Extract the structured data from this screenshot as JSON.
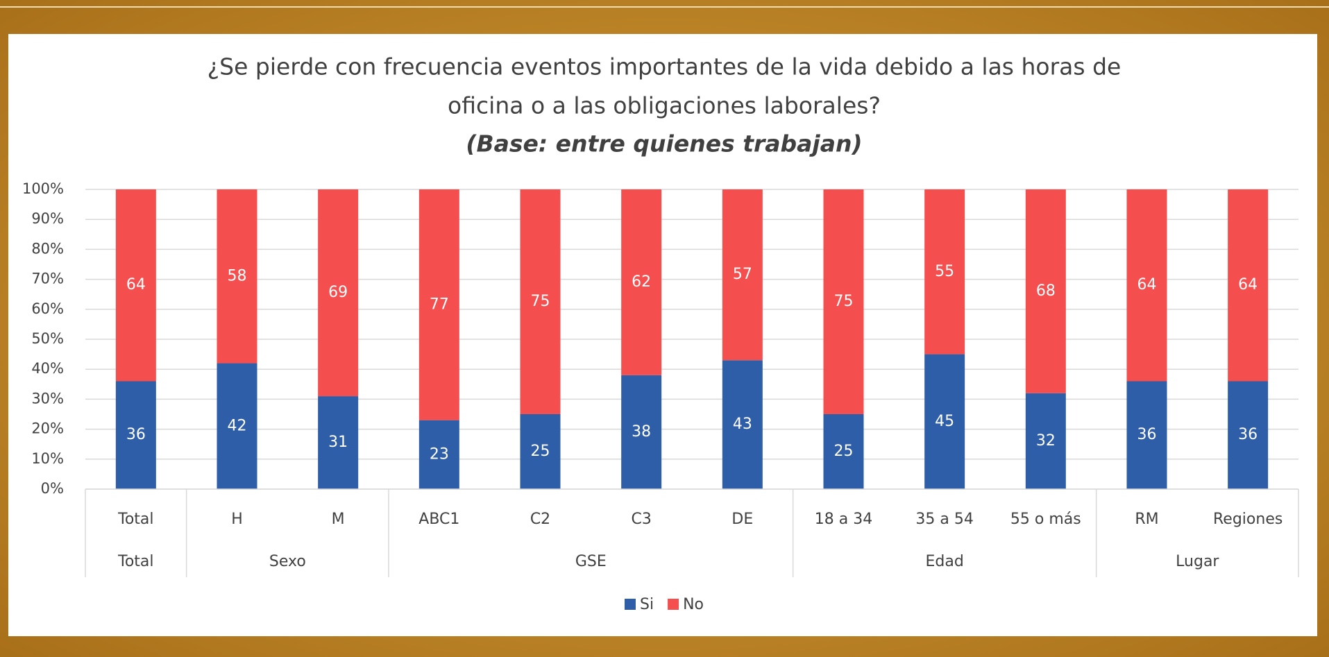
{
  "chart_data": {
    "type": "stacked_bar",
    "title_lines": [
      "¿Se pierde con frecuencia eventos importantes de la vida debido a las horas de",
      "oficina o a las obligaciones laborales?"
    ],
    "subtitle": "(Base: entre quienes trabajan)",
    "categories": [
      "Total",
      "H",
      "M",
      "ABC1",
      "C2",
      "C3",
      "DE",
      "18 a 34",
      "35 a 54",
      "55 o más",
      "RM",
      "Regiones"
    ],
    "groups": [
      {
        "label": "Total",
        "count": 1
      },
      {
        "label": "Sexo",
        "count": 2
      },
      {
        "label": "GSE",
        "count": 4
      },
      {
        "label": "Edad",
        "count": 3
      },
      {
        "label": "Lugar",
        "count": 2
      }
    ],
    "series": [
      {
        "name": "Si",
        "color": "#2e5ea8",
        "values": [
          36,
          42,
          31,
          23,
          25,
          38,
          43,
          25,
          45,
          32,
          36,
          36
        ]
      },
      {
        "name": "No",
        "color": "#f44e4e",
        "values": [
          64,
          58,
          69,
          77,
          75,
          62,
          57,
          75,
          55,
          68,
          64,
          64
        ]
      }
    ],
    "ylim": [
      0,
      100
    ],
    "yticks": [
      {
        "value": 0,
        "label": "0%"
      },
      {
        "value": 10,
        "label": "10%"
      },
      {
        "value": 20,
        "label": "20%"
      },
      {
        "value": 30,
        "label": "30%"
      },
      {
        "value": 40,
        "label": "40%"
      },
      {
        "value": 50,
        "label": "50%"
      },
      {
        "value": 60,
        "label": "60%"
      },
      {
        "value": 70,
        "label": "70%"
      },
      {
        "value": 80,
        "label": "80%"
      },
      {
        "value": 90,
        "label": "90%"
      },
      {
        "value": 100,
        "label": "100%"
      }
    ],
    "grid": true,
    "legend": "bottom"
  }
}
